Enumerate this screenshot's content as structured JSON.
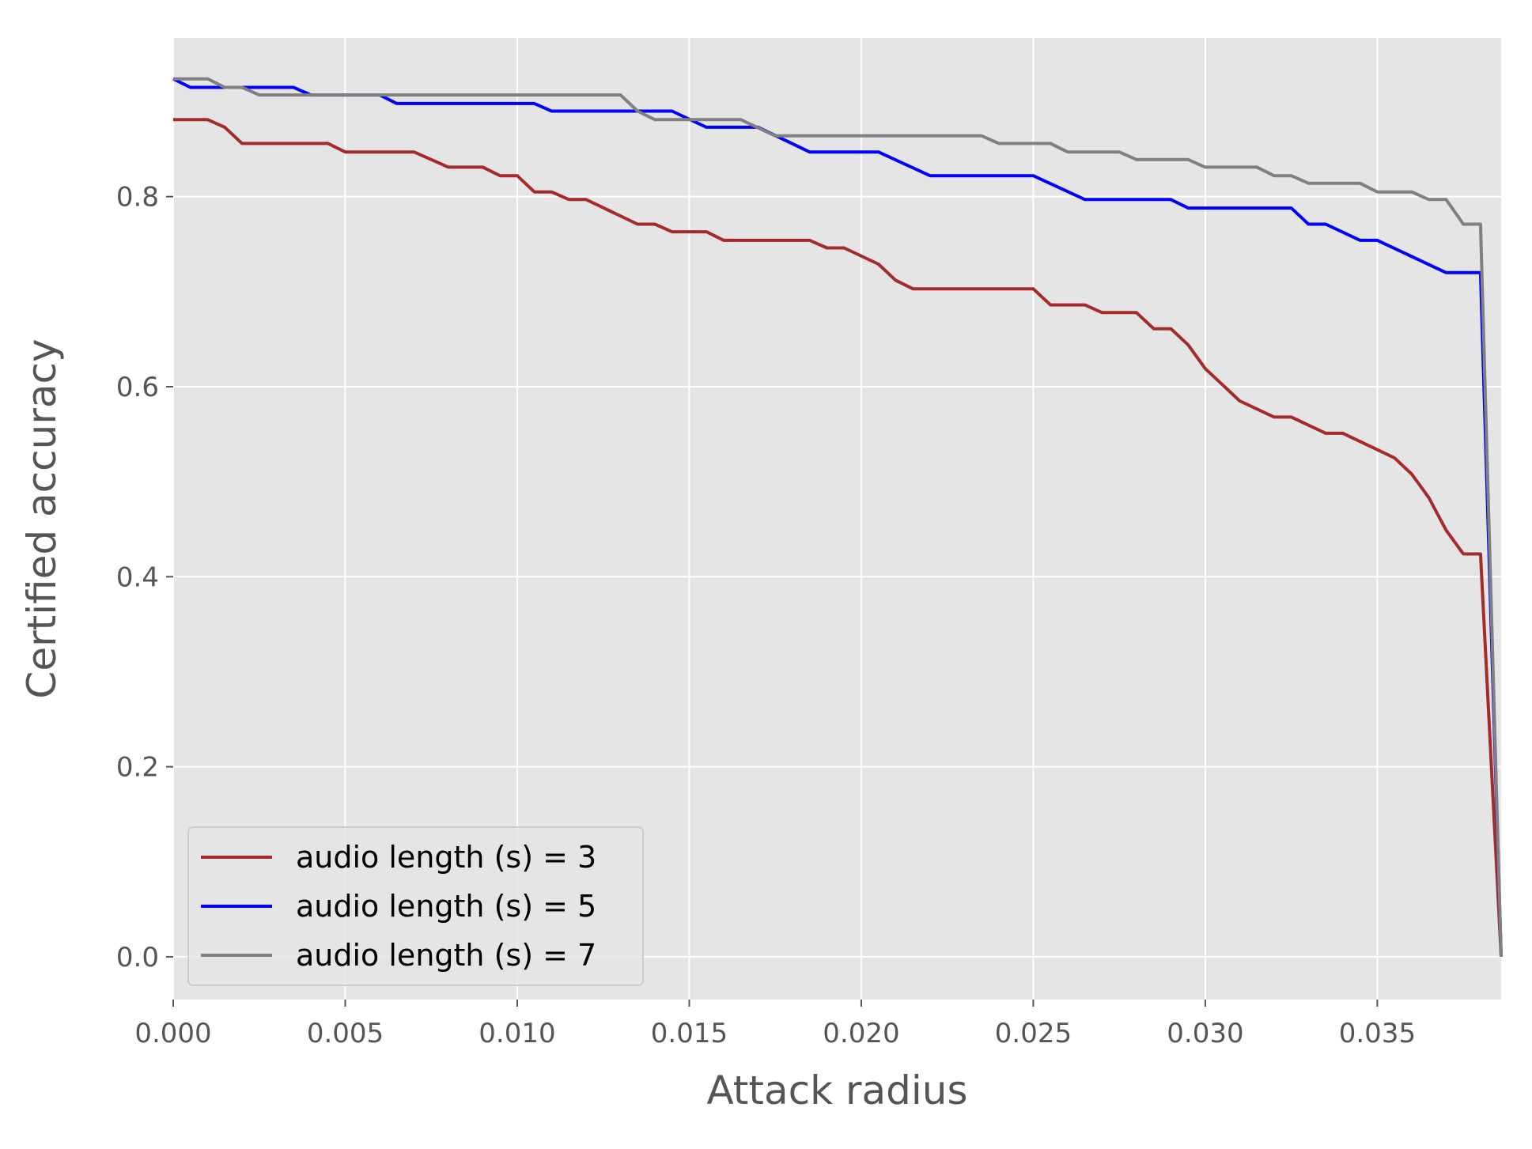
{
  "chart_data": {
    "type": "line",
    "title": "",
    "xlabel": "Attack radius",
    "ylabel": "Certified accuracy",
    "xlim": [
      0.0,
      0.0386
    ],
    "ylim": [
      -0.045,
      0.967
    ],
    "xticks": [
      0.0,
      0.005,
      0.01,
      0.015,
      0.02,
      0.025,
      0.03,
      0.035
    ],
    "xtick_labels": [
      "0.000",
      "0.005",
      "0.010",
      "0.015",
      "0.020",
      "0.025",
      "0.030",
      "0.035"
    ],
    "yticks": [
      0.0,
      0.2,
      0.4,
      0.6,
      0.8
    ],
    "ytick_labels": [
      "0.0",
      "0.2",
      "0.4",
      "0.6",
      "0.8"
    ],
    "grid": true,
    "background": "#e5e5e5",
    "legend_position": "lower-left",
    "series": [
      {
        "name": "audio length (s) = 3",
        "color": "#a52a2a",
        "points": [
          [
            0.0,
            0.881
          ],
          [
            0.001,
            0.881
          ],
          [
            0.0015,
            0.873
          ],
          [
            0.002,
            0.856
          ],
          [
            0.0045,
            0.856
          ],
          [
            0.005,
            0.847
          ],
          [
            0.007,
            0.847
          ],
          [
            0.008,
            0.831
          ],
          [
            0.009,
            0.831
          ],
          [
            0.0095,
            0.822
          ],
          [
            0.01,
            0.822
          ],
          [
            0.0105,
            0.805
          ],
          [
            0.011,
            0.805
          ],
          [
            0.0115,
            0.797
          ],
          [
            0.012,
            0.797
          ],
          [
            0.0135,
            0.771
          ],
          [
            0.014,
            0.771
          ],
          [
            0.0145,
            0.763
          ],
          [
            0.0155,
            0.763
          ],
          [
            0.016,
            0.754
          ],
          [
            0.0185,
            0.754
          ],
          [
            0.019,
            0.746
          ],
          [
            0.0195,
            0.746
          ],
          [
            0.0205,
            0.729
          ],
          [
            0.021,
            0.712
          ],
          [
            0.0215,
            0.703
          ],
          [
            0.025,
            0.703
          ],
          [
            0.0255,
            0.686
          ],
          [
            0.0265,
            0.686
          ],
          [
            0.027,
            0.678
          ],
          [
            0.028,
            0.678
          ],
          [
            0.0285,
            0.661
          ],
          [
            0.029,
            0.661
          ],
          [
            0.0295,
            0.644
          ],
          [
            0.03,
            0.619
          ],
          [
            0.0305,
            0.602
          ],
          [
            0.031,
            0.585
          ],
          [
            0.032,
            0.568
          ],
          [
            0.0325,
            0.568
          ],
          [
            0.0335,
            0.551
          ],
          [
            0.034,
            0.551
          ],
          [
            0.0355,
            0.525
          ],
          [
            0.036,
            0.508
          ],
          [
            0.0365,
            0.483
          ],
          [
            0.037,
            0.449
          ],
          [
            0.0375,
            0.424
          ],
          [
            0.038,
            0.424
          ],
          [
            0.0386,
            0.0
          ]
        ]
      },
      {
        "name": "audio length (s) = 5",
        "color": "#0000ff",
        "points": [
          [
            0.0,
            0.924
          ],
          [
            0.0005,
            0.915
          ],
          [
            0.0035,
            0.915
          ],
          [
            0.004,
            0.907
          ],
          [
            0.006,
            0.907
          ],
          [
            0.0065,
            0.898
          ],
          [
            0.0105,
            0.898
          ],
          [
            0.011,
            0.89
          ],
          [
            0.0145,
            0.89
          ],
          [
            0.0155,
            0.873
          ],
          [
            0.017,
            0.873
          ],
          [
            0.0185,
            0.847
          ],
          [
            0.0205,
            0.847
          ],
          [
            0.022,
            0.822
          ],
          [
            0.025,
            0.822
          ],
          [
            0.0265,
            0.797
          ],
          [
            0.029,
            0.797
          ],
          [
            0.0295,
            0.788
          ],
          [
            0.0325,
            0.788
          ],
          [
            0.033,
            0.771
          ],
          [
            0.0335,
            0.771
          ],
          [
            0.0345,
            0.754
          ],
          [
            0.035,
            0.754
          ],
          [
            0.037,
            0.72
          ],
          [
            0.038,
            0.72
          ],
          [
            0.0386,
            0.0
          ]
        ]
      },
      {
        "name": "audio length (s) = 7",
        "color": "#808080",
        "points": [
          [
            0.0,
            0.924
          ],
          [
            0.001,
            0.924
          ],
          [
            0.0015,
            0.915
          ],
          [
            0.002,
            0.915
          ],
          [
            0.0025,
            0.907
          ],
          [
            0.013,
            0.907
          ],
          [
            0.0135,
            0.89
          ],
          [
            0.014,
            0.881
          ],
          [
            0.0165,
            0.881
          ],
          [
            0.0175,
            0.864
          ],
          [
            0.0235,
            0.864
          ],
          [
            0.024,
            0.856
          ],
          [
            0.0255,
            0.856
          ],
          [
            0.026,
            0.847
          ],
          [
            0.0275,
            0.847
          ],
          [
            0.028,
            0.839
          ],
          [
            0.0295,
            0.839
          ],
          [
            0.03,
            0.831
          ],
          [
            0.0315,
            0.831
          ],
          [
            0.032,
            0.822
          ],
          [
            0.0325,
            0.822
          ],
          [
            0.033,
            0.814
          ],
          [
            0.0345,
            0.814
          ],
          [
            0.035,
            0.805
          ],
          [
            0.036,
            0.805
          ],
          [
            0.0365,
            0.797
          ],
          [
            0.037,
            0.797
          ],
          [
            0.0375,
            0.771
          ],
          [
            0.038,
            0.771
          ],
          [
            0.0386,
            0.0
          ]
        ]
      }
    ]
  }
}
